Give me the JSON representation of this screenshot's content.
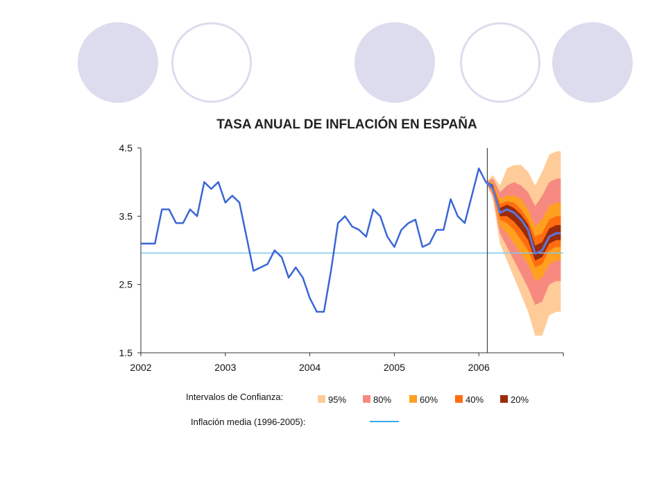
{
  "decor": {
    "circles": [
      "filled",
      "hollow",
      "filled",
      "hollow",
      "filled"
    ],
    "circle_color": "#dcdcee"
  },
  "chart_data": {
    "type": "line",
    "title": "TASA ANUAL DE INFLACIÓN EN ESPAÑA",
    "xlabel": "",
    "ylabel": "",
    "xlim": [
      2002,
      2007
    ],
    "ylim": [
      1.5,
      4.5
    ],
    "x_ticks": [
      "2002",
      "2003",
      "2004",
      "2005",
      "2006"
    ],
    "y_ticks": [
      "4.5",
      "3.5",
      "2.5",
      "1.5"
    ],
    "grid": false,
    "series": [
      {
        "color": "#3a66d6",
        "x": [
          2002.0,
          2002.083,
          2002.167,
          2002.25,
          2002.333,
          2002.417,
          2002.5,
          2002.583,
          2002.667,
          2002.75,
          2002.833,
          2002.917,
          2003.0,
          2003.083,
          2003.167,
          2003.25,
          2003.333,
          2003.417,
          2003.5,
          2003.583,
          2003.667,
          2003.75,
          2003.833,
          2003.917,
          2004.0,
          2004.083,
          2004.167,
          2004.25,
          2004.333,
          2004.417,
          2004.5,
          2004.583,
          2004.667,
          2004.75,
          2004.833,
          2004.917,
          2005.0,
          2005.083,
          2005.167,
          2005.25,
          2005.333,
          2005.417,
          2005.5,
          2005.583,
          2005.667,
          2005.75,
          2005.833,
          2005.917,
          2006.0,
          2006.083,
          2006.167
        ],
        "values": [
          3.1,
          3.1,
          3.1,
          3.6,
          3.6,
          3.4,
          3.4,
          3.6,
          3.5,
          4.0,
          3.9,
          4.0,
          3.7,
          3.8,
          3.7,
          3.2,
          2.7,
          2.75,
          2.8,
          3.0,
          2.9,
          2.6,
          2.75,
          2.6,
          2.3,
          2.1,
          2.1,
          2.7,
          3.4,
          3.5,
          3.35,
          3.3,
          3.2,
          3.6,
          3.5,
          3.2,
          3.05,
          3.3,
          3.4,
          3.45,
          3.05,
          3.1,
          3.3,
          3.3,
          3.75,
          3.5,
          3.4,
          3.8,
          4.2,
          4.0,
          3.95
        ]
      }
    ],
    "forecast": {
      "x": [
        2006.083,
        2006.167,
        2006.25,
        2006.333,
        2006.417,
        2006.5,
        2006.583,
        2006.667,
        2006.75,
        2006.833,
        2006.917,
        2006.97
      ],
      "central": [
        4.0,
        3.9,
        3.55,
        3.6,
        3.55,
        3.45,
        3.3,
        2.95,
        3.0,
        3.2,
        3.25,
        3.25
      ],
      "bands": [
        {
          "label": "95%",
          "color": "#ffcc99",
          "lo": [
            4.0,
            3.75,
            3.1,
            2.85,
            2.6,
            2.35,
            2.1,
            1.75,
            1.75,
            2.05,
            2.1,
            2.1
          ],
          "hi": [
            4.0,
            4.1,
            3.95,
            4.2,
            4.25,
            4.25,
            4.15,
            3.95,
            4.15,
            4.4,
            4.45,
            4.45
          ]
        },
        {
          "label": "80%",
          "color": "#f78a80",
          "lo": [
            4.0,
            3.8,
            3.25,
            3.05,
            2.85,
            2.65,
            2.45,
            2.2,
            2.25,
            2.5,
            2.55,
            2.55
          ],
          "hi": [
            4.0,
            4.05,
            3.85,
            3.95,
            4.0,
            3.95,
            3.85,
            3.65,
            3.8,
            4.0,
            4.05,
            4.05
          ]
        },
        {
          "label": "60%",
          "color": "#ffa020",
          "lo": [
            4.0,
            3.85,
            3.35,
            3.25,
            3.1,
            2.95,
            2.8,
            2.55,
            2.6,
            2.8,
            2.85,
            2.85
          ],
          "hi": [
            4.0,
            4.0,
            3.75,
            3.8,
            3.8,
            3.75,
            3.6,
            3.35,
            3.45,
            3.65,
            3.7,
            3.7
          ]
        },
        {
          "label": "40%",
          "color": "#ff6d10",
          "lo": [
            4.0,
            3.87,
            3.45,
            3.4,
            3.3,
            3.15,
            3.0,
            2.75,
            2.8,
            3.0,
            3.05,
            3.05
          ],
          "hi": [
            4.0,
            3.97,
            3.68,
            3.72,
            3.7,
            3.6,
            3.45,
            3.2,
            3.25,
            3.45,
            3.5,
            3.5
          ]
        },
        {
          "label": "20%",
          "color": "#9a2b0a",
          "lo": [
            4.0,
            3.89,
            3.5,
            3.5,
            3.42,
            3.3,
            3.15,
            2.85,
            2.9,
            3.1,
            3.15,
            3.15
          ],
          "hi": [
            4.0,
            3.95,
            3.62,
            3.67,
            3.62,
            3.52,
            3.38,
            3.07,
            3.12,
            3.32,
            3.37,
            3.37
          ]
        }
      ],
      "start_line_x": 2006.1
    },
    "mean_line": {
      "value": 2.96,
      "color": "#7ec8f0",
      "label": "Inflación media (1996-2005):"
    },
    "legend": {
      "intervals_label": "Intervalos de Confianza:",
      "items": [
        {
          "label": "95%",
          "color": "#ffcc99"
        },
        {
          "label": "80%",
          "color": "#f78a80"
        },
        {
          "label": "60%",
          "color": "#ffa020"
        },
        {
          "label": "40%",
          "color": "#ff6d10"
        },
        {
          "label": "20%",
          "color": "#9a2b0a"
        }
      ],
      "placement": "bottom"
    }
  }
}
